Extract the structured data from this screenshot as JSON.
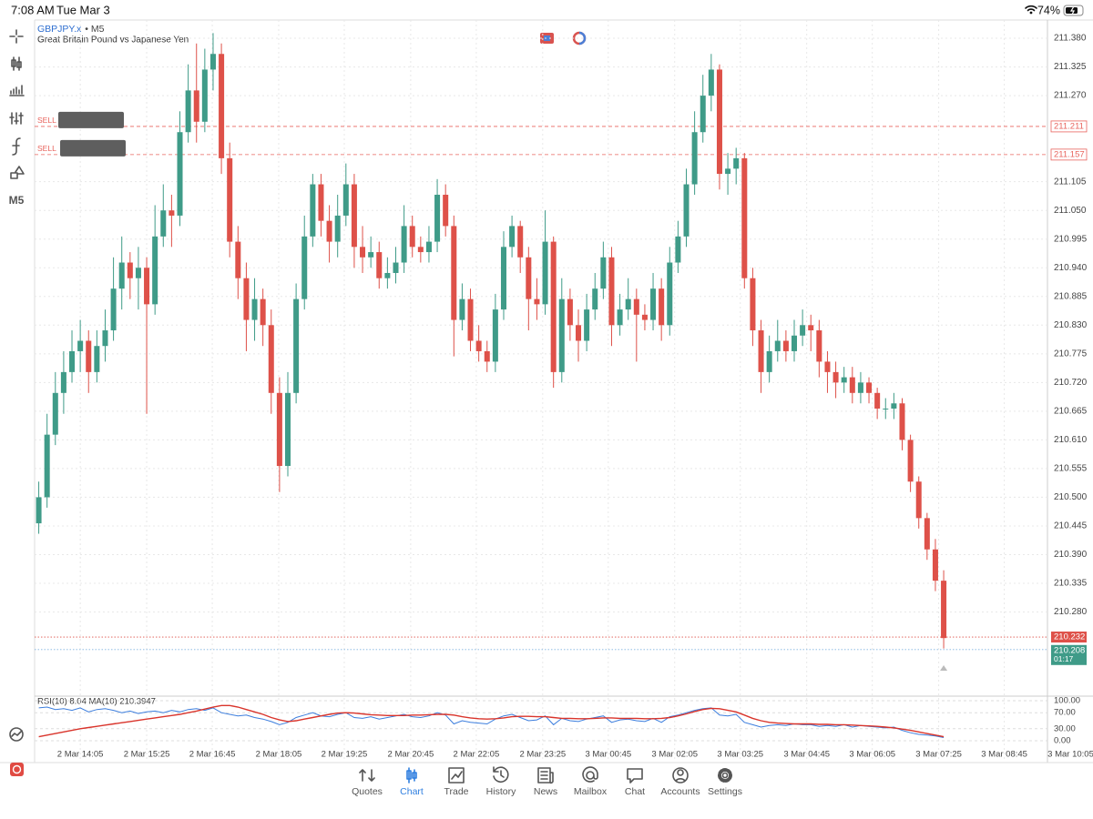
{
  "status_bar": {
    "time": "7:08 AM",
    "date": "Tue Mar 3",
    "battery": "74%"
  },
  "toolbar": {
    "timeframe": "M5"
  },
  "chart_data": {
    "type": "candlestick",
    "symbol": "GBPJPY.x",
    "timeframe_label": "• M5",
    "description": "Great Britain Pound vs Japanese Yen",
    "up_color": "#3f9b88",
    "down_color": "#de5149",
    "grid": true,
    "ylim": [
      210.171,
      211.415
    ],
    "yticks": [
      {
        "value": 211.38,
        "label": "211.380"
      },
      211.325,
      {
        "value": 211.27,
        "label": "211.270"
      },
      211.105,
      {
        "value": 211.05,
        "label": "211.050"
      },
      210.995,
      {
        "value": 210.94,
        "label": "210.940"
      },
      210.885,
      {
        "value": 210.83,
        "label": "210.830"
      },
      210.775,
      {
        "value": 210.72,
        "label": "210.720"
      },
      210.665,
      {
        "value": 210.61,
        "label": "210.610"
      },
      210.555,
      {
        "value": 210.5,
        "label": "210.500"
      },
      210.445,
      {
        "value": 210.39,
        "label": "210.390"
      },
      210.335,
      {
        "value": 210.28,
        "label": "210.280"
      }
    ],
    "xlim": [
      0,
      122
    ],
    "xticks": [
      {
        "value": 5.5,
        "label": "2 Mar 14:05"
      },
      {
        "value": 13.5,
        "label": "2 Mar 15:25"
      },
      {
        "value": 21.4,
        "label": "2 Mar 16:45"
      },
      {
        "value": 29.4,
        "label": "2 Mar 18:05"
      },
      {
        "value": 37.3,
        "label": "2 Mar 19:25"
      },
      {
        "value": 45.3,
        "label": "2 Mar 20:45"
      },
      {
        "value": 53.2,
        "label": "2 Mar 22:05"
      },
      {
        "value": 61.2,
        "label": "2 Mar 23:25"
      },
      {
        "value": 69.1,
        "label": "3 Mar 00:45"
      },
      {
        "value": 77.1,
        "label": "3 Mar 02:05"
      },
      {
        "value": 85,
        "label": "3 Mar 03:25"
      },
      {
        "value": 93,
        "label": "3 Mar 04:45"
      },
      {
        "value": 100.9,
        "label": "3 Mar 06:05"
      },
      {
        "value": 108.9,
        "label": "3 Mar 07:25"
      },
      {
        "value": 116.8,
        "label": "3 Mar 08:45"
      },
      {
        "value": 124.8,
        "label": "3 Mar 10:05"
      }
    ],
    "candles": [
      [
        210.45,
        210.53,
        210.43,
        210.5
      ],
      [
        210.5,
        210.66,
        210.48,
        210.62
      ],
      [
        210.62,
        210.74,
        210.6,
        210.7
      ],
      [
        210.7,
        210.78,
        210.66,
        210.74
      ],
      [
        210.74,
        210.82,
        210.72,
        210.78
      ],
      [
        210.78,
        210.84,
        210.74,
        210.8
      ],
      [
        210.8,
        210.82,
        210.7,
        210.74
      ],
      [
        210.74,
        210.82,
        210.72,
        210.79
      ],
      [
        210.79,
        210.86,
        210.76,
        210.82
      ],
      [
        210.82,
        210.96,
        210.8,
        210.9
      ],
      [
        210.9,
        211.0,
        210.86,
        210.95
      ],
      [
        210.95,
        210.97,
        210.88,
        210.92
      ],
      [
        210.92,
        210.98,
        210.86,
        210.94
      ],
      [
        210.94,
        210.96,
        210.66,
        210.87
      ],
      [
        210.87,
        211.06,
        210.85,
        211.0
      ],
      [
        211.0,
        211.1,
        210.98,
        211.05
      ],
      [
        211.05,
        211.08,
        210.98,
        211.04
      ],
      [
        211.04,
        211.24,
        211.02,
        211.2
      ],
      [
        211.2,
        211.33,
        211.18,
        211.28
      ],
      [
        211.28,
        211.37,
        211.18,
        211.22
      ],
      [
        211.22,
        211.36,
        211.2,
        211.32
      ],
      [
        211.32,
        211.39,
        211.28,
        211.35
      ],
      [
        211.35,
        211.37,
        211.12,
        211.15
      ],
      [
        211.15,
        211.18,
        210.96,
        210.99
      ],
      [
        210.99,
        211.02,
        210.88,
        210.92
      ],
      [
        210.92,
        210.95,
        210.78,
        210.84
      ],
      [
        210.84,
        210.92,
        210.8,
        210.88
      ],
      [
        210.88,
        210.9,
        210.79,
        210.83
      ],
      [
        210.83,
        210.86,
        210.66,
        210.7
      ],
      [
        210.7,
        210.73,
        210.51,
        210.56
      ],
      [
        210.56,
        210.74,
        210.54,
        210.7
      ],
      [
        210.7,
        210.91,
        210.68,
        210.88
      ],
      [
        210.88,
        211.04,
        210.86,
        211.0
      ],
      [
        211.0,
        211.12,
        210.98,
        211.1
      ],
      [
        211.1,
        211.12,
        211.0,
        211.03
      ],
      [
        211.03,
        211.06,
        210.95,
        210.99
      ],
      [
        210.99,
        211.08,
        210.96,
        211.04
      ],
      [
        211.04,
        211.14,
        211.02,
        211.1
      ],
      [
        211.1,
        211.12,
        210.94,
        210.98
      ],
      [
        210.98,
        211.02,
        210.93,
        210.96
      ],
      [
        210.96,
        211.0,
        210.94,
        210.97
      ],
      [
        210.97,
        210.99,
        210.9,
        210.92
      ],
      [
        210.92,
        210.96,
        210.9,
        210.93
      ],
      [
        210.93,
        210.98,
        210.91,
        210.95
      ],
      [
        210.95,
        211.06,
        210.93,
        211.02
      ],
      [
        211.02,
        211.04,
        210.96,
        210.98
      ],
      [
        210.98,
        211.0,
        210.95,
        210.97
      ],
      [
        210.97,
        211.02,
        210.95,
        210.99
      ],
      [
        210.99,
        211.11,
        210.97,
        211.08
      ],
      [
        211.08,
        211.1,
        211.0,
        211.02
      ],
      [
        211.02,
        211.04,
        210.77,
        210.84
      ],
      [
        210.84,
        210.91,
        210.82,
        210.88
      ],
      [
        210.88,
        210.9,
        210.78,
        210.8
      ],
      [
        210.8,
        210.83,
        210.76,
        210.78
      ],
      [
        210.78,
        210.8,
        210.74,
        210.76
      ],
      [
        210.76,
        210.89,
        210.74,
        210.86
      ],
      [
        210.86,
        211.01,
        210.84,
        210.98
      ],
      [
        210.98,
        211.04,
        210.96,
        211.02
      ],
      [
        211.02,
        211.03,
        210.93,
        210.96
      ],
      [
        210.96,
        210.98,
        210.82,
        210.88
      ],
      [
        210.88,
        210.92,
        210.84,
        210.87
      ],
      [
        210.87,
        211.05,
        210.85,
        210.99
      ],
      [
        210.99,
        211.0,
        210.71,
        210.74
      ],
      [
        210.74,
        210.92,
        210.72,
        210.88
      ],
      [
        210.88,
        210.9,
        210.8,
        210.83
      ],
      [
        210.83,
        210.86,
        210.76,
        210.8
      ],
      [
        210.8,
        210.89,
        210.78,
        210.86
      ],
      [
        210.86,
        210.93,
        210.84,
        210.9
      ],
      [
        210.9,
        210.99,
        210.88,
        210.96
      ],
      [
        210.96,
        210.98,
        210.79,
        210.83
      ],
      [
        210.83,
        210.89,
        210.81,
        210.86
      ],
      [
        210.86,
        210.92,
        210.84,
        210.88
      ],
      [
        210.88,
        210.9,
        210.76,
        210.85
      ],
      [
        210.85,
        210.87,
        210.82,
        210.84
      ],
      [
        210.84,
        210.93,
        210.82,
        210.9
      ],
      [
        210.9,
        210.92,
        210.8,
        210.83
      ],
      [
        210.83,
        210.98,
        210.81,
        210.95
      ],
      [
        210.95,
        211.03,
        210.93,
        211.0
      ],
      [
        211.0,
        211.13,
        210.98,
        211.1
      ],
      [
        211.1,
        211.24,
        211.08,
        211.2
      ],
      [
        211.2,
        211.31,
        211.18,
        211.27
      ],
      [
        211.27,
        211.35,
        211.24,
        211.32
      ],
      [
        211.32,
        211.33,
        211.09,
        211.12
      ],
      [
        211.12,
        211.16,
        211.08,
        211.13
      ],
      [
        211.13,
        211.17,
        211.1,
        211.15
      ],
      [
        211.15,
        211.16,
        210.9,
        210.92
      ],
      [
        210.92,
        210.94,
        210.79,
        210.82
      ],
      [
        210.82,
        210.84,
        210.7,
        210.74
      ],
      [
        210.74,
        210.81,
        210.72,
        210.78
      ],
      [
        210.78,
        210.84,
        210.76,
        210.8
      ],
      [
        210.8,
        210.82,
        210.76,
        210.78
      ],
      [
        210.78,
        210.84,
        210.76,
        210.81
      ],
      [
        210.81,
        210.86,
        210.79,
        210.83
      ],
      [
        210.83,
        210.85,
        210.78,
        210.82
      ],
      [
        210.82,
        210.84,
        210.73,
        210.76
      ],
      [
        210.76,
        210.78,
        210.7,
        210.74
      ],
      [
        210.74,
        210.76,
        210.69,
        210.72
      ],
      [
        210.72,
        210.75,
        210.7,
        210.73
      ],
      [
        210.73,
        210.75,
        210.68,
        210.7
      ],
      [
        210.7,
        210.74,
        210.68,
        210.72
      ],
      [
        210.72,
        210.73,
        210.68,
        210.7
      ],
      [
        210.7,
        210.71,
        210.65,
        210.67
      ],
      [
        210.67,
        210.69,
        210.65,
        210.67
      ],
      [
        210.67,
        210.7,
        210.65,
        210.68
      ],
      [
        210.68,
        210.69,
        210.59,
        210.61
      ],
      [
        210.61,
        210.62,
        210.51,
        210.53
      ],
      [
        210.53,
        210.54,
        210.44,
        210.46
      ],
      [
        210.46,
        210.47,
        210.38,
        210.4
      ],
      [
        210.4,
        210.42,
        210.32,
        210.34
      ],
      [
        210.34,
        210.36,
        210.21,
        210.23
      ]
    ],
    "orders": [
      {
        "label": "SELL",
        "price": 211.211,
        "color": "#e8635c"
      },
      {
        "label": "SELL",
        "price": 211.157,
        "color": "#e8635c"
      }
    ],
    "bid": {
      "value": 210.232,
      "color": "#de5149"
    },
    "ask": {
      "value": 210.208,
      "color": "#3f9b88",
      "line_color": "#7fb2e0",
      "timer": "01:17"
    },
    "indicator": {
      "label": "RSI(10) 8.04 MA(10) 210.3947",
      "ylim": [
        0,
        100
      ],
      "yticks": [
        {
          "value": 100,
          "label": "100.00"
        },
        {
          "value": 70,
          "label": "70.00"
        },
        {
          "value": 30,
          "label": "30.00"
        },
        {
          "value": 0,
          "label": "0.00"
        }
      ],
      "series": [
        {
          "color": "#3b7ddd",
          "values": [
            82,
            84,
            78,
            80,
            76,
            82,
            72,
            78,
            80,
            76,
            70,
            74,
            68,
            72,
            74,
            70,
            76,
            72,
            78,
            80,
            76,
            82,
            70,
            66,
            62,
            64,
            58,
            54,
            48,
            40,
            46,
            58,
            64,
            70,
            62,
            60,
            66,
            70,
            58,
            56,
            60,
            54,
            58,
            62,
            66,
            60,
            58,
            62,
            70,
            64,
            42,
            50,
            46,
            44,
            42,
            54,
            62,
            66,
            58,
            50,
            52,
            62,
            40,
            56,
            50,
            48,
            54,
            58,
            62,
            46,
            52,
            54,
            50,
            48,
            56,
            46,
            60,
            64,
            70,
            76,
            80,
            82,
            64,
            62,
            66,
            46,
            40,
            34,
            38,
            40,
            38,
            42,
            40,
            40,
            36,
            38,
            36,
            40,
            34,
            38,
            36,
            34,
            32,
            34,
            26,
            20,
            16,
            14,
            12,
            8.04
          ]
        },
        {
          "color": "#d9342b",
          "values": [
            10,
            14,
            18,
            22,
            26,
            30,
            33,
            36,
            39,
            42,
            45,
            48,
            51,
            54,
            57,
            60,
            63,
            66,
            70,
            74,
            79,
            84,
            88,
            88,
            84,
            78,
            72,
            66,
            58,
            52,
            48,
            50,
            54,
            58,
            62,
            66,
            69,
            70,
            69,
            67,
            65,
            64,
            63,
            63,
            63,
            64,
            64,
            65,
            66,
            66,
            64,
            60,
            57,
            55,
            54,
            55,
            57,
            60,
            61,
            61,
            60,
            60,
            58,
            56,
            56,
            55,
            55,
            56,
            57,
            57,
            56,
            56,
            56,
            55,
            55,
            56,
            58,
            62,
            67,
            73,
            78,
            81,
            80,
            76,
            72,
            64,
            56,
            50,
            46,
            44,
            43,
            42,
            42,
            42,
            41,
            41,
            40,
            40,
            39,
            38,
            37,
            36,
            34,
            32,
            29,
            26,
            22,
            18,
            14,
            10
          ]
        }
      ]
    }
  },
  "tabs": [
    "Quotes",
    "Chart",
    "Trade",
    "History",
    "News",
    "Mailbox",
    "Chat",
    "Accounts",
    "Settings"
  ],
  "active_tab": 1,
  "active_color": "#2f7fe0"
}
